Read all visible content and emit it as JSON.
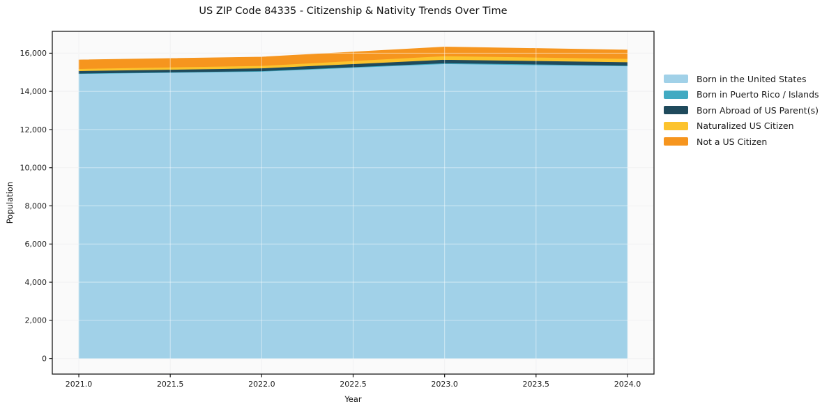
{
  "chart_data": {
    "type": "area",
    "stacked": true,
    "title": "US ZIP Code 84335 - Citizenship & Nativity Trends Over Time",
    "xlabel": "Year",
    "ylabel": "Population",
    "x": [
      2021,
      2022,
      2023,
      2024
    ],
    "series": [
      {
        "name": "Born in the United States",
        "color": "#a1d1e8",
        "values": [
          14930,
          15050,
          15450,
          15330
        ]
      },
      {
        "name": "Born in Puerto Rico / Islands",
        "color": "#41aac2",
        "values": [
          20,
          25,
          40,
          35
        ]
      },
      {
        "name": "Born Abroad of US Parent(s)",
        "color": "#1f4a5c",
        "values": [
          130,
          145,
          180,
          175
        ]
      },
      {
        "name": "Naturalized US Citizen",
        "color": "#fcc32d",
        "values": [
          110,
          130,
          190,
          180
        ]
      },
      {
        "name": "Not a US Citizen",
        "color": "#f6951e",
        "values": [
          460,
          450,
          470,
          450
        ]
      }
    ],
    "totals": [
      15650,
      15800,
      16330,
      16170
    ],
    "xlim": [
      2020.855,
      2024.145
    ],
    "ylim": [
      -816,
      17147
    ],
    "xticks": [
      "2021.0",
      "2021.5",
      "2022.0",
      "2022.5",
      "2023.0",
      "2023.5",
      "2024.0"
    ],
    "xtick_values": [
      2021.0,
      2021.5,
      2022.0,
      2022.5,
      2023.0,
      2023.5,
      2024.0
    ],
    "yticks": [
      "0",
      "2,000",
      "4,000",
      "6,000",
      "8,000",
      "10,000",
      "12,000",
      "14,000",
      "16,000"
    ],
    "ytick_values": [
      0,
      2000,
      4000,
      6000,
      8000,
      10000,
      12000,
      14000,
      16000
    ],
    "grid": true,
    "legend_position": "right",
    "colors": {
      "plot_background": "#fafafa",
      "gridline": "#e9e9ec",
      "spine": "#1a1a1a",
      "text": "#1a1a1a"
    }
  }
}
